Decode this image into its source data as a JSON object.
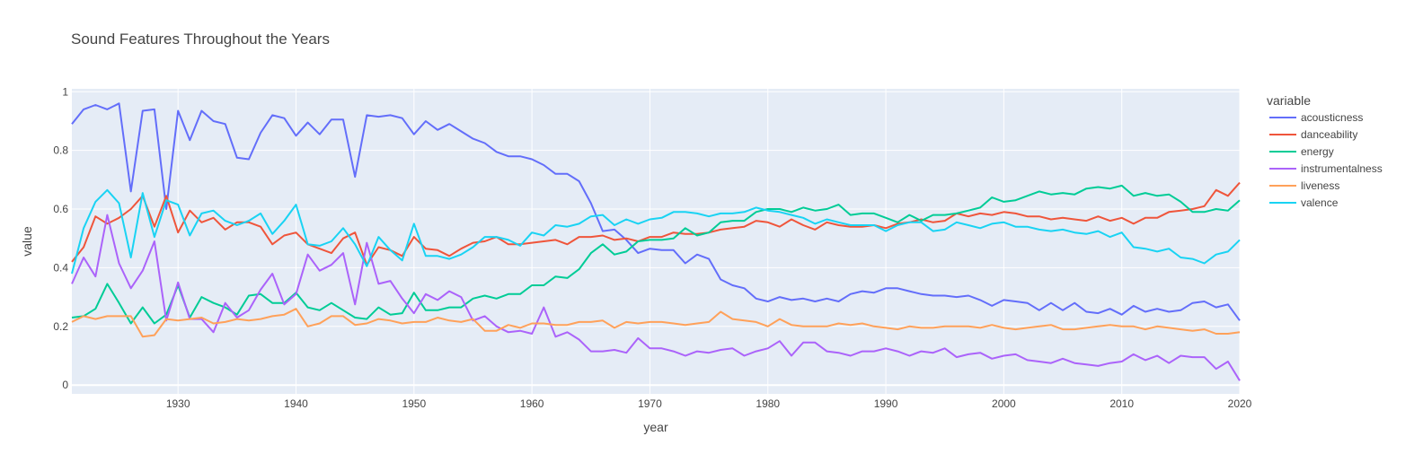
{
  "chart_data": {
    "type": "line",
    "title": "Sound Features Throughout the Years",
    "xlabel": "year",
    "ylabel": "value",
    "xlim": [
      1921,
      2020
    ],
    "ylim": [
      -0.03,
      1.01
    ],
    "x_ticks": [
      1930,
      1940,
      1950,
      1960,
      1970,
      1980,
      1990,
      2000,
      2010,
      2020
    ],
    "y_ticks": [
      0,
      0.2,
      0.4,
      0.6,
      0.8,
      1
    ],
    "y_tick_labels": [
      "0",
      "0.2",
      "0.4",
      "0.6",
      "0.8",
      "1"
    ],
    "grid": true,
    "plot_bgcolor": "#E5ECF6",
    "legend": {
      "title": "variable",
      "position": "right"
    },
    "x": [
      1921,
      1922,
      1923,
      1924,
      1925,
      1926,
      1927,
      1928,
      1929,
      1930,
      1931,
      1932,
      1933,
      1934,
      1935,
      1936,
      1937,
      1938,
      1939,
      1940,
      1941,
      1942,
      1943,
      1944,
      1945,
      1946,
      1947,
      1948,
      1949,
      1950,
      1951,
      1952,
      1953,
      1954,
      1955,
      1956,
      1957,
      1958,
      1959,
      1960,
      1961,
      1962,
      1963,
      1964,
      1965,
      1966,
      1967,
      1968,
      1969,
      1970,
      1971,
      1972,
      1973,
      1974,
      1975,
      1976,
      1977,
      1978,
      1979,
      1980,
      1981,
      1982,
      1983,
      1984,
      1985,
      1986,
      1987,
      1988,
      1989,
      1990,
      1991,
      1992,
      1993,
      1994,
      1995,
      1996,
      1997,
      1998,
      1999,
      2000,
      2001,
      2002,
      2003,
      2004,
      2005,
      2006,
      2007,
      2008,
      2009,
      2010,
      2011,
      2012,
      2013,
      2014,
      2015,
      2016,
      2017,
      2018,
      2019,
      2020
    ],
    "series": [
      {
        "name": "acousticness",
        "color": "#636EFA",
        "values": [
          0.89,
          0.94,
          0.955,
          0.94,
          0.96,
          0.66,
          0.935,
          0.94,
          0.6,
          0.935,
          0.835,
          0.935,
          0.9,
          0.89,
          0.775,
          0.77,
          0.86,
          0.92,
          0.91,
          0.85,
          0.895,
          0.855,
          0.905,
          0.905,
          0.71,
          0.92,
          0.915,
          0.92,
          0.91,
          0.855,
          0.9,
          0.87,
          0.89,
          0.865,
          0.84,
          0.825,
          0.795,
          0.78,
          0.78,
          0.77,
          0.75,
          0.72,
          0.72,
          0.695,
          0.62,
          0.525,
          0.53,
          0.495,
          0.45,
          0.465,
          0.46,
          0.46,
          0.415,
          0.445,
          0.43,
          0.36,
          0.34,
          0.33,
          0.295,
          0.285,
          0.3,
          0.29,
          0.295,
          0.285,
          0.295,
          0.285,
          0.31,
          0.32,
          0.315,
          0.33,
          0.33,
          0.32,
          0.31,
          0.305,
          0.305,
          0.3,
          0.305,
          0.29,
          0.27,
          0.29,
          0.285,
          0.28,
          0.255,
          0.28,
          0.255,
          0.28,
          0.25,
          0.245,
          0.26,
          0.24,
          0.27,
          0.25,
          0.26,
          0.25,
          0.255,
          0.28,
          0.285,
          0.265,
          0.275,
          0.22
        ]
      },
      {
        "name": "danceability",
        "color": "#EF553B",
        "values": [
          0.42,
          0.47,
          0.575,
          0.55,
          0.57,
          0.6,
          0.645,
          0.54,
          0.645,
          0.52,
          0.595,
          0.555,
          0.57,
          0.53,
          0.555,
          0.555,
          0.54,
          0.48,
          0.51,
          0.52,
          0.48,
          0.465,
          0.45,
          0.5,
          0.52,
          0.41,
          0.47,
          0.46,
          0.44,
          0.505,
          0.465,
          0.46,
          0.44,
          0.465,
          0.485,
          0.49,
          0.505,
          0.48,
          0.48,
          0.485,
          0.49,
          0.495,
          0.48,
          0.505,
          0.505,
          0.51,
          0.495,
          0.5,
          0.49,
          0.505,
          0.505,
          0.52,
          0.515,
          0.515,
          0.52,
          0.53,
          0.535,
          0.54,
          0.56,
          0.555,
          0.54,
          0.565,
          0.545,
          0.53,
          0.555,
          0.545,
          0.54,
          0.54,
          0.545,
          0.535,
          0.55,
          0.555,
          0.565,
          0.555,
          0.56,
          0.585,
          0.575,
          0.585,
          0.58,
          0.59,
          0.585,
          0.575,
          0.575,
          0.565,
          0.57,
          0.565,
          0.56,
          0.575,
          0.56,
          0.57,
          0.55,
          0.57,
          0.57,
          0.59,
          0.595,
          0.6,
          0.61,
          0.665,
          0.645,
          0.69
        ]
      },
      {
        "name": "energy",
        "color": "#00CC96",
        "values": [
          0.23,
          0.235,
          0.26,
          0.345,
          0.28,
          0.21,
          0.265,
          0.21,
          0.24,
          0.34,
          0.23,
          0.3,
          0.28,
          0.265,
          0.24,
          0.305,
          0.31,
          0.28,
          0.28,
          0.315,
          0.265,
          0.255,
          0.28,
          0.255,
          0.23,
          0.225,
          0.265,
          0.24,
          0.245,
          0.315,
          0.255,
          0.255,
          0.265,
          0.265,
          0.295,
          0.305,
          0.295,
          0.31,
          0.31,
          0.34,
          0.34,
          0.37,
          0.365,
          0.395,
          0.45,
          0.48,
          0.445,
          0.455,
          0.49,
          0.495,
          0.495,
          0.5,
          0.535,
          0.51,
          0.52,
          0.555,
          0.56,
          0.56,
          0.59,
          0.6,
          0.6,
          0.59,
          0.605,
          0.595,
          0.6,
          0.615,
          0.58,
          0.585,
          0.585,
          0.57,
          0.555,
          0.58,
          0.56,
          0.58,
          0.58,
          0.585,
          0.595,
          0.605,
          0.64,
          0.625,
          0.63,
          0.645,
          0.66,
          0.65,
          0.655,
          0.65,
          0.67,
          0.675,
          0.67,
          0.68,
          0.645,
          0.655,
          0.645,
          0.65,
          0.625,
          0.59,
          0.59,
          0.6,
          0.595,
          0.63
        ]
      },
      {
        "name": "instrumentalness",
        "color": "#AB63FA",
        "values": [
          0.345,
          0.435,
          0.37,
          0.58,
          0.415,
          0.33,
          0.39,
          0.49,
          0.22,
          0.35,
          0.225,
          0.225,
          0.18,
          0.28,
          0.23,
          0.255,
          0.325,
          0.38,
          0.275,
          0.31,
          0.445,
          0.39,
          0.41,
          0.45,
          0.275,
          0.485,
          0.345,
          0.355,
          0.295,
          0.245,
          0.31,
          0.29,
          0.32,
          0.3,
          0.22,
          0.235,
          0.2,
          0.18,
          0.185,
          0.175,
          0.265,
          0.165,
          0.18,
          0.155,
          0.115,
          0.115,
          0.12,
          0.11,
          0.16,
          0.125,
          0.125,
          0.115,
          0.1,
          0.115,
          0.11,
          0.12,
          0.125,
          0.1,
          0.115,
          0.125,
          0.15,
          0.1,
          0.145,
          0.145,
          0.115,
          0.11,
          0.1,
          0.115,
          0.115,
          0.125,
          0.115,
          0.1,
          0.115,
          0.11,
          0.125,
          0.095,
          0.105,
          0.11,
          0.09,
          0.1,
          0.105,
          0.085,
          0.08,
          0.075,
          0.09,
          0.075,
          0.07,
          0.065,
          0.075,
          0.08,
          0.105,
          0.085,
          0.1,
          0.075,
          0.1,
          0.095,
          0.095,
          0.055,
          0.08,
          0.015
        ]
      },
      {
        "name": "liveness",
        "color": "#FFA15A",
        "values": [
          0.215,
          0.235,
          0.225,
          0.235,
          0.235,
          0.235,
          0.165,
          0.17,
          0.225,
          0.22,
          0.225,
          0.23,
          0.21,
          0.215,
          0.225,
          0.22,
          0.225,
          0.235,
          0.24,
          0.26,
          0.2,
          0.21,
          0.235,
          0.235,
          0.205,
          0.21,
          0.225,
          0.22,
          0.21,
          0.215,
          0.215,
          0.23,
          0.22,
          0.215,
          0.225,
          0.185,
          0.185,
          0.205,
          0.195,
          0.21,
          0.21,
          0.205,
          0.205,
          0.215,
          0.215,
          0.22,
          0.195,
          0.215,
          0.21,
          0.215,
          0.215,
          0.21,
          0.205,
          0.21,
          0.215,
          0.25,
          0.225,
          0.22,
          0.215,
          0.2,
          0.225,
          0.205,
          0.2,
          0.2,
          0.2,
          0.21,
          0.205,
          0.21,
          0.2,
          0.195,
          0.19,
          0.2,
          0.195,
          0.195,
          0.2,
          0.2,
          0.2,
          0.195,
          0.205,
          0.195,
          0.19,
          0.195,
          0.2,
          0.205,
          0.19,
          0.19,
          0.195,
          0.2,
          0.205,
          0.2,
          0.2,
          0.19,
          0.2,
          0.195,
          0.19,
          0.185,
          0.19,
          0.175,
          0.175,
          0.18
        ]
      },
      {
        "name": "valence",
        "color": "#19D3F3",
        "values": [
          0.38,
          0.535,
          0.625,
          0.665,
          0.62,
          0.435,
          0.655,
          0.505,
          0.63,
          0.615,
          0.51,
          0.585,
          0.595,
          0.56,
          0.545,
          0.56,
          0.585,
          0.515,
          0.56,
          0.615,
          0.48,
          0.475,
          0.49,
          0.535,
          0.48,
          0.405,
          0.505,
          0.46,
          0.425,
          0.55,
          0.44,
          0.44,
          0.43,
          0.445,
          0.47,
          0.505,
          0.505,
          0.495,
          0.475,
          0.52,
          0.51,
          0.545,
          0.54,
          0.55,
          0.575,
          0.58,
          0.545,
          0.565,
          0.55,
          0.565,
          0.57,
          0.59,
          0.59,
          0.585,
          0.575,
          0.585,
          0.585,
          0.59,
          0.605,
          0.595,
          0.59,
          0.58,
          0.57,
          0.55,
          0.565,
          0.555,
          0.545,
          0.545,
          0.545,
          0.525,
          0.545,
          0.555,
          0.555,
          0.525,
          0.53,
          0.555,
          0.545,
          0.535,
          0.55,
          0.555,
          0.54,
          0.54,
          0.53,
          0.525,
          0.53,
          0.52,
          0.515,
          0.525,
          0.505,
          0.52,
          0.47,
          0.465,
          0.455,
          0.465,
          0.435,
          0.43,
          0.415,
          0.445,
          0.455,
          0.495
        ]
      }
    ]
  }
}
